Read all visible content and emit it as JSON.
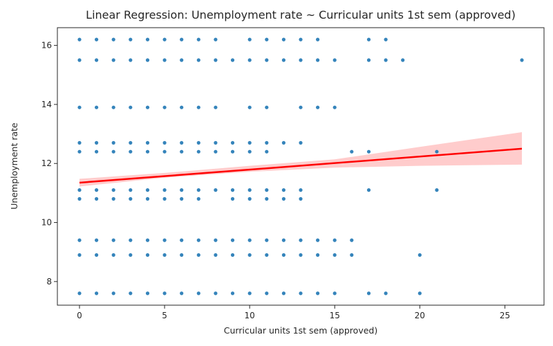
{
  "chart_data": {
    "type": "scatter",
    "title": "Linear Regression: Unemployment rate ~ Curricular units 1st sem (approved)",
    "xlabel": "Curricular units 1st sem (approved)",
    "ylabel": "Unemployment rate",
    "xlim": [
      -1.3,
      27.3
    ],
    "ylim": [
      7.2,
      16.6
    ],
    "x_ticks": [
      0,
      5,
      10,
      15,
      20,
      25
    ],
    "y_ticks": [
      8,
      10,
      12,
      14,
      16
    ],
    "grid": false,
    "legend": "none",
    "colors": {
      "points": "#1f77b4",
      "fit_line": "#ff0000",
      "confidence_band": "#ffcccc"
    },
    "scatter_rows": [
      {
        "y": 16.2,
        "x": [
          0,
          1,
          2,
          3,
          4,
          5,
          6,
          7,
          8,
          10,
          11,
          12,
          13,
          14,
          17,
          18
        ]
      },
      {
        "y": 15.5,
        "x": [
          0,
          1,
          2,
          3,
          4,
          5,
          6,
          7,
          8,
          9,
          10,
          11,
          12,
          13,
          14,
          15,
          17,
          18,
          19,
          26
        ]
      },
      {
        "y": 13.9,
        "x": [
          0,
          1,
          2,
          3,
          4,
          5,
          6,
          7,
          8,
          10,
          11,
          13,
          14,
          15
        ]
      },
      {
        "y": 12.7,
        "x": [
          0,
          1,
          2,
          3,
          4,
          5,
          6,
          7,
          8,
          9,
          10,
          11,
          12,
          13
        ]
      },
      {
        "y": 12.4,
        "x": [
          0,
          1,
          2,
          3,
          4,
          5,
          6,
          7,
          8,
          9,
          10,
          11,
          16,
          17,
          21
        ]
      },
      {
        "y": 11.1,
        "x": [
          0,
          1,
          2,
          3,
          4,
          5,
          6,
          7,
          8,
          9,
          10,
          11,
          12,
          13,
          17,
          21
        ]
      },
      {
        "y": 10.8,
        "x": [
          0,
          1,
          2,
          3,
          4,
          5,
          6,
          7,
          9,
          10,
          11,
          12,
          13
        ]
      },
      {
        "y": 9.4,
        "x": [
          0,
          1,
          2,
          3,
          4,
          5,
          6,
          7,
          8,
          9,
          10,
          11,
          12,
          13,
          14,
          15,
          16
        ]
      },
      {
        "y": 8.9,
        "x": [
          0,
          1,
          2,
          3,
          4,
          5,
          6,
          7,
          8,
          9,
          10,
          11,
          12,
          13,
          14,
          15,
          16,
          20
        ]
      },
      {
        "y": 7.6,
        "x": [
          0,
          1,
          2,
          3,
          4,
          5,
          6,
          7,
          8,
          9,
          10,
          11,
          12,
          13,
          14,
          15,
          17,
          18,
          20
        ]
      }
    ],
    "regression_line": {
      "x": [
        0,
        26
      ],
      "y": [
        11.35,
        12.5
      ]
    },
    "confidence_band": {
      "x": [
        0,
        5,
        10,
        15,
        20,
        26
      ],
      "lower": [
        11.22,
        11.52,
        11.72,
        11.86,
        11.92,
        11.96
      ],
      "upper": [
        11.48,
        11.68,
        11.92,
        12.14,
        12.56,
        13.06
      ]
    }
  }
}
